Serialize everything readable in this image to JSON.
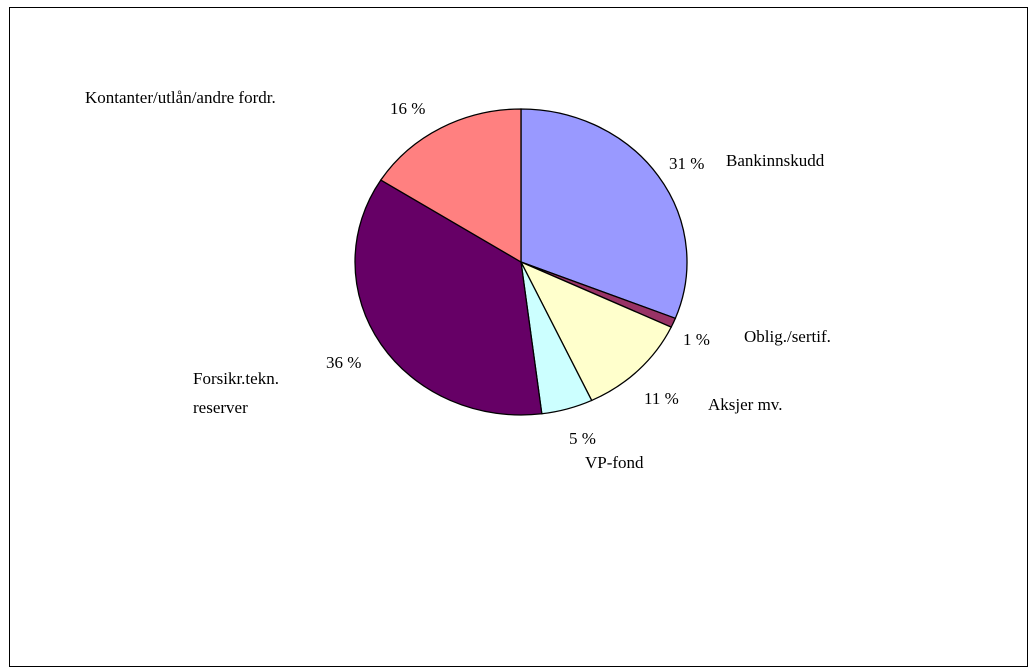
{
  "chart_data": {
    "type": "pie",
    "title": "",
    "slices": [
      {
        "label": "Bankinnskudd",
        "value": 31,
        "pct_label": "31 %",
        "color": "#9999ff"
      },
      {
        "label": "Oblig./sertif.",
        "value": 1,
        "pct_label": "1 %",
        "color": "#993366"
      },
      {
        "label": "Aksjer mv.",
        "value": 11,
        "pct_label": "11 %",
        "color": "#ffffcc"
      },
      {
        "label": "VP-fond",
        "value": 5,
        "pct_label": "5 %",
        "color": "#ccffff"
      },
      {
        "label": "Forsikr.tekn. reserver",
        "label_lines": [
          "Forsikr.tekn.",
          "reserver"
        ],
        "value": 36,
        "pct_label": "36 %",
        "color": "#660066"
      },
      {
        "label": "Kontanter/utlån/andre fordr.",
        "value": 16,
        "pct_label": "16 %",
        "color": "#ff8080"
      }
    ],
    "start": "12 o'clock",
    "direction": "clockwise",
    "legend": "none"
  }
}
